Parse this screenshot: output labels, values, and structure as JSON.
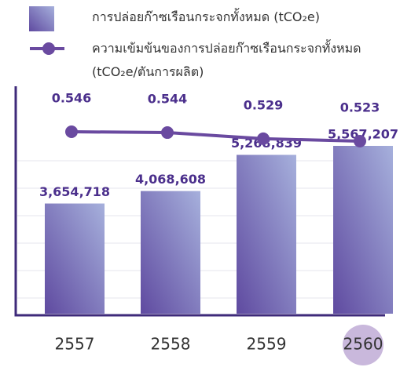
{
  "chart_data": {
    "type": "bar-line",
    "categories": [
      "2557",
      "2558",
      "2559",
      "2560"
    ],
    "series": [
      {
        "name": "การปล่อยก๊าซเรือนกระจกทั้งหมด (tCO₂e)",
        "type": "bar",
        "color": "#7a68b8",
        "values": [
          3654718,
          4068608,
          5268839,
          5567207
        ],
        "value_labels": [
          "3,654,718",
          "4,068,608",
          "5,268,839",
          "5,567,207"
        ]
      },
      {
        "name": "ความเข้มข้นของการปล่อยก๊าซเรือนกระจกทั้งหมด (tCO₂e/ตันการผลิต)",
        "type": "line",
        "color": "#6a4aa0",
        "values": [
          0.546,
          0.544,
          0.529,
          0.523
        ]
      }
    ]
  }
}
